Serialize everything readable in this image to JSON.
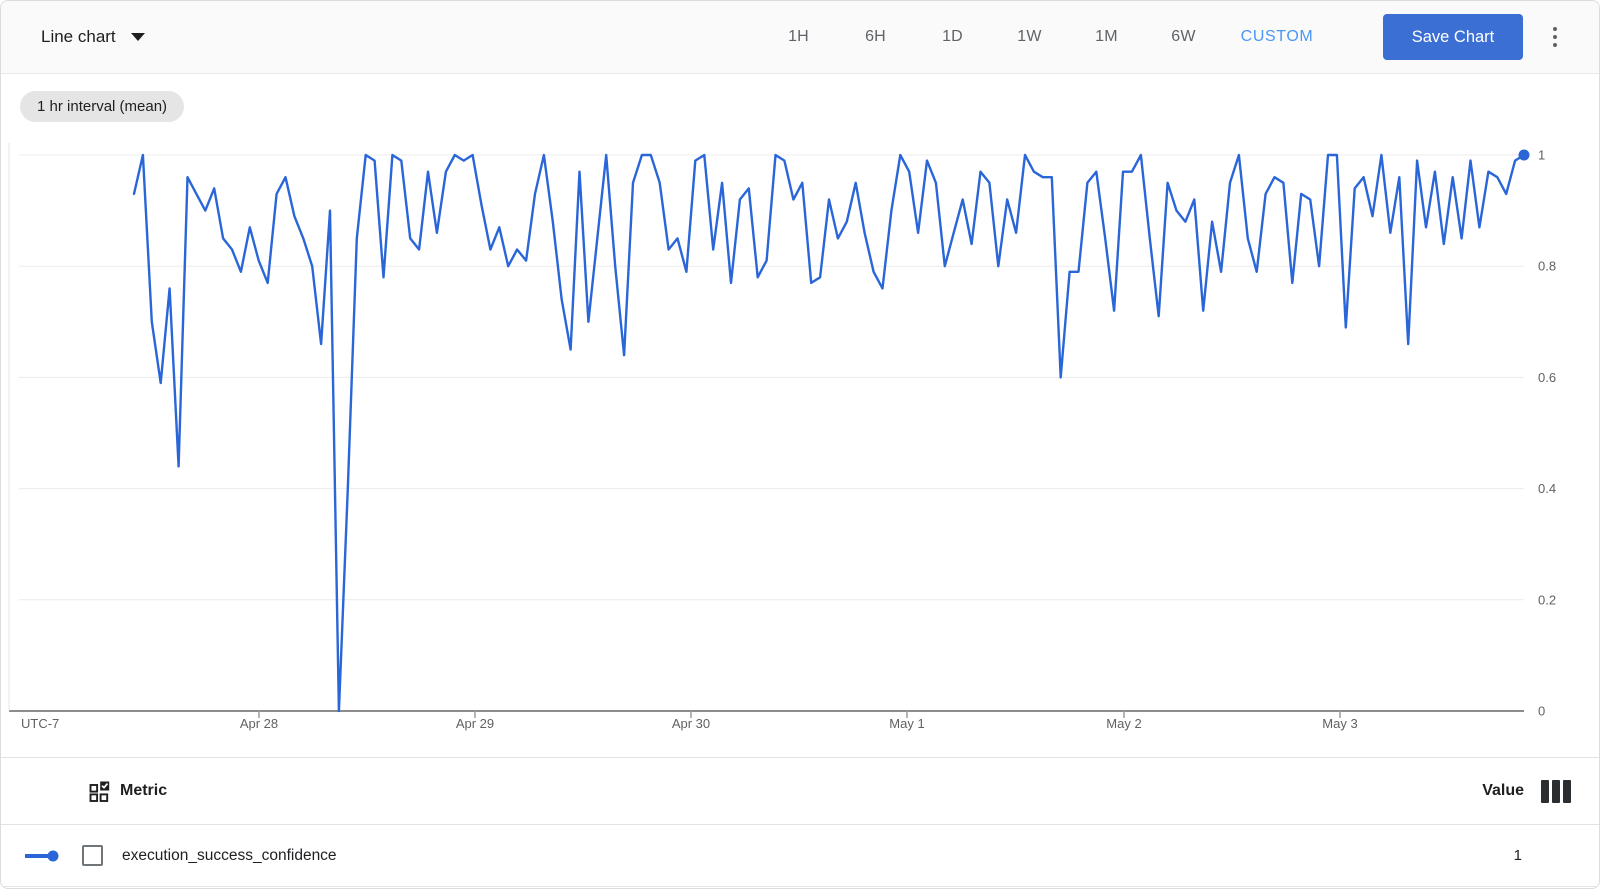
{
  "toolbar": {
    "chart_type_label": "Line chart",
    "time_ranges": [
      "1H",
      "6H",
      "1D",
      "1W",
      "1M",
      "6W"
    ],
    "custom_label": "CUSTOM",
    "save_label": "Save Chart"
  },
  "chip": {
    "label": "1 hr interval (mean)"
  },
  "chart_data": {
    "type": "line",
    "title": "",
    "interval_label": "1 hr interval (mean)",
    "legend_position": "bottom-table",
    "grid": "horizontal",
    "x_axis": {
      "timezone_label": "UTC-7",
      "tick_labels": [
        "Apr 28",
        "Apr 29",
        "Apr 30",
        "May 1",
        "May 2",
        "May 3"
      ]
    },
    "y_axis": {
      "ticks": [
        0,
        0.2,
        0.4,
        0.6,
        0.8,
        1
      ],
      "tick_labels": [
        "0",
        "0.2",
        "0.4",
        "0.6",
        "0.8",
        "1"
      ],
      "range": [
        0,
        1
      ]
    },
    "series": [
      {
        "name": "execution_success_confidence",
        "color": "#2a66d8",
        "point_interval": "1 hour",
        "endpoint_value": 1,
        "values": [
          0.93,
          1,
          0.7,
          0.59,
          0.76,
          0.44,
          0.96,
          0.93,
          0.9,
          0.94,
          0.85,
          0.83,
          0.79,
          0.87,
          0.81,
          0.77,
          0.93,
          0.96,
          0.89,
          0.85,
          0.8,
          0.66,
          0.9,
          0,
          0.4,
          0.85,
          1,
          0.99,
          0.78,
          1,
          0.99,
          0.85,
          0.83,
          0.97,
          0.86,
          0.97,
          1,
          0.99,
          1,
          0.91,
          0.83,
          0.87,
          0.8,
          0.83,
          0.81,
          0.93,
          1,
          0.88,
          0.74,
          0.65,
          0.97,
          0.7,
          0.85,
          1,
          0.8,
          0.64,
          0.95,
          1,
          1,
          0.95,
          0.83,
          0.85,
          0.79,
          0.99,
          1,
          0.83,
          0.95,
          0.77,
          0.92,
          0.94,
          0.78,
          0.81,
          1,
          0.99,
          0.92,
          0.95,
          0.77,
          0.78,
          0.92,
          0.85,
          0.88,
          0.95,
          0.86,
          0.79,
          0.76,
          0.9,
          1,
          0.97,
          0.86,
          0.99,
          0.95,
          0.8,
          0.86,
          0.92,
          0.84,
          0.97,
          0.95,
          0.8,
          0.92,
          0.86,
          1,
          0.97,
          0.96,
          0.96,
          0.6,
          0.79,
          0.79,
          0.95,
          0.97,
          0.85,
          0.72,
          0.97,
          0.97,
          1,
          0.85,
          0.71,
          0.95,
          0.9,
          0.88,
          0.92,
          0.72,
          0.88,
          0.79,
          0.95,
          1,
          0.85,
          0.79,
          0.93,
          0.96,
          0.95,
          0.77,
          0.93,
          0.92,
          0.8,
          1,
          1,
          0.69,
          0.94,
          0.96,
          0.89,
          1,
          0.86,
          0.96,
          0.66,
          0.99,
          0.87,
          0.97,
          0.84,
          0.96,
          0.85,
          0.99,
          0.87,
          0.97,
          0.96,
          0.93,
          0.99,
          1
        ]
      }
    ]
  },
  "table": {
    "metric_header": "Metric",
    "value_header": "Value",
    "rows": [
      {
        "metric": "execution_success_confidence",
        "value": "1",
        "color": "#2a66d8",
        "checked": false
      }
    ]
  },
  "colors": {
    "series_blue": "#2a66d8",
    "custom_link_blue": "#4a97f5",
    "save_button_bg": "#3b6fd4",
    "toolbar_bg": "#fafafa",
    "chip_bg": "#e5e5e5",
    "border": "#e3e3e3",
    "axis_text": "#616161"
  }
}
